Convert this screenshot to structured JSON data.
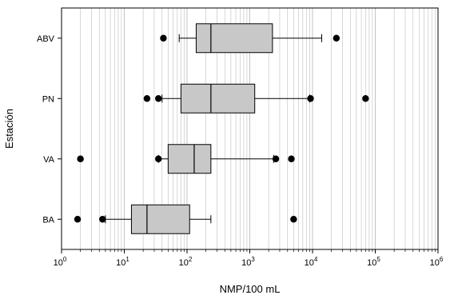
{
  "chart_data": {
    "type": "boxplot",
    "orientation": "horizontal",
    "xlabel": "NMP/100 mL",
    "ylabel": "Estación",
    "x_scale": "log10",
    "xlim": [
      1,
      1000000
    ],
    "x_ticks": [
      {
        "value": 1,
        "base": "10",
        "exp": "0"
      },
      {
        "value": 10,
        "base": "10",
        "exp": "1"
      },
      {
        "value": 100,
        "base": "10",
        "exp": "2"
      },
      {
        "value": 1000,
        "base": "10",
        "exp": "3"
      },
      {
        "value": 10000,
        "base": "10",
        "exp": "4"
      },
      {
        "value": 100000,
        "base": "10",
        "exp": "5"
      },
      {
        "value": 1000000,
        "base": "10",
        "exp": "6"
      }
    ],
    "grid": "vertical, major and minor",
    "categories": [
      "ABV",
      "PN",
      "VA",
      "BA"
    ],
    "boxes": [
      {
        "label": "ABV",
        "whisker_low": 75,
        "q1": 140,
        "median": 240,
        "q3": 2300,
        "whisker_high": 14000,
        "outliers": [
          42,
          24000
        ]
      },
      {
        "label": "PN",
        "whisker_low": 40,
        "q1": 80,
        "median": 240,
        "q3": 1200,
        "whisker_high": 9000,
        "outliers": [
          23,
          35,
          9300,
          70000
        ]
      },
      {
        "label": "VA",
        "whisker_low": 35,
        "q1": 50,
        "median": 130,
        "q3": 240,
        "whisker_high": 2400,
        "outliers": [
          2,
          35,
          2600,
          4600
        ]
      },
      {
        "label": "BA",
        "whisker_low": 5,
        "q1": 13,
        "median": 23,
        "q3": 110,
        "whisker_high": 240,
        "outliers": [
          1.8,
          4.5,
          5000
        ]
      }
    ],
    "colors": {
      "box_fill": "#c8c8c8",
      "grid": "#bdbdbd",
      "axis": "#000000",
      "outlier": "#000000"
    }
  }
}
